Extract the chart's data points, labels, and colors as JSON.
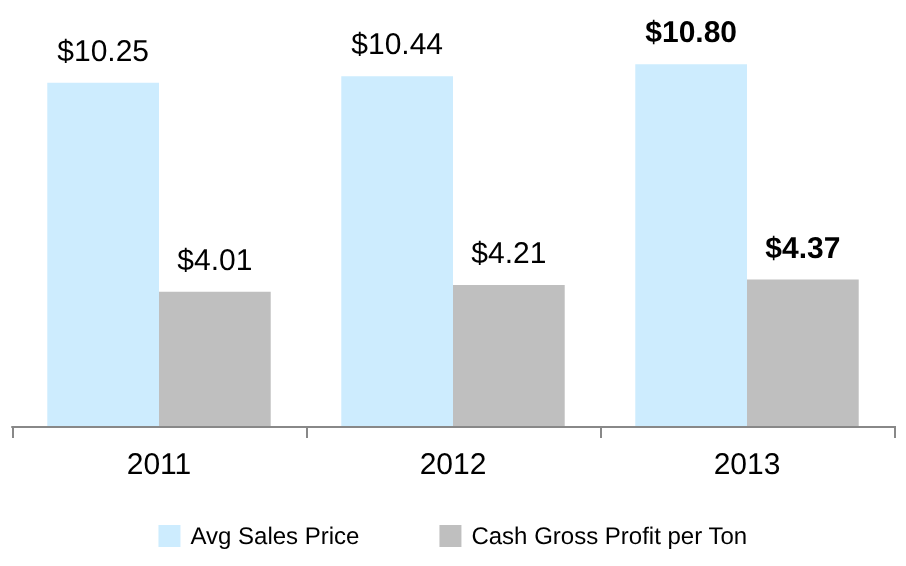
{
  "chart_data": {
    "type": "bar",
    "categories": [
      "2011",
      "2012",
      "2013"
    ],
    "series": [
      {
        "name": "Avg Sales Price",
        "color": "#cdecfe",
        "values": [
          10.25,
          10.44,
          10.8
        ],
        "value_labels": [
          "$10.25",
          "$10.44",
          "$10.80"
        ]
      },
      {
        "name": "Cash Gross Profit per Ton",
        "color": "#bfbfbf",
        "values": [
          4.01,
          4.21,
          4.37
        ],
        "value_labels": [
          "$4.01",
          "$4.21",
          "$4.37"
        ]
      }
    ],
    "legend": "bottom"
  }
}
